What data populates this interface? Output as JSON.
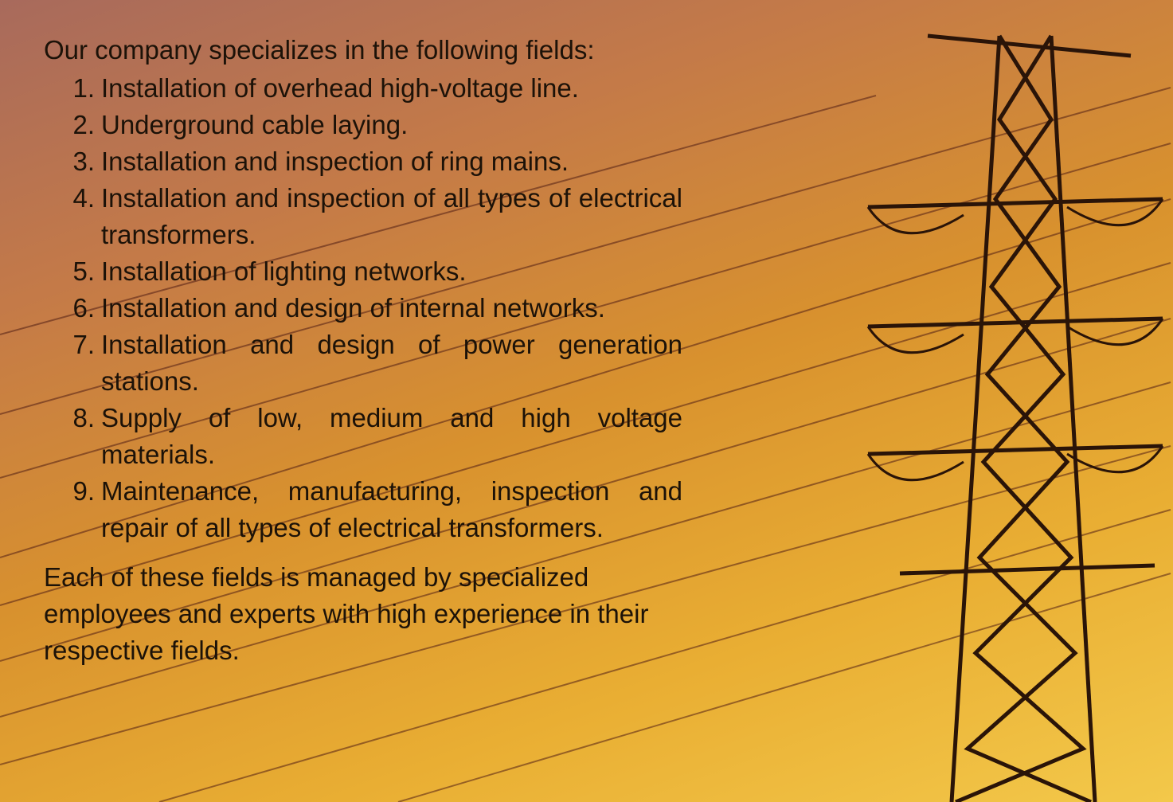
{
  "intro": "Our company specializes in the following fields:",
  "items": [
    {
      "number": "1.",
      "text": "Installation of overhead high-voltage line."
    },
    {
      "number": "2.",
      "text": "Underground cable laying."
    },
    {
      "number": "3.",
      "text": "Installation and inspection of ring mains."
    },
    {
      "number": "4.",
      "text": "Installation and inspection of all types of electrical transformers."
    },
    {
      "number": "5.",
      "text": "Installation of lighting networks."
    },
    {
      "number": "6.",
      "text": "Installation and design of internal networks."
    },
    {
      "number": "7.",
      "text": "Installation and design of power generation stations."
    },
    {
      "number": "8.",
      "text": "Supply of low, medium and high voltage materials."
    },
    {
      "number": "9.",
      "text": "Maintenance, manufacturing, inspection and repair of all types of electrical transformers."
    }
  ],
  "closing": "Each of these fields is managed by specialized employees and experts with high experience in their respective fields."
}
